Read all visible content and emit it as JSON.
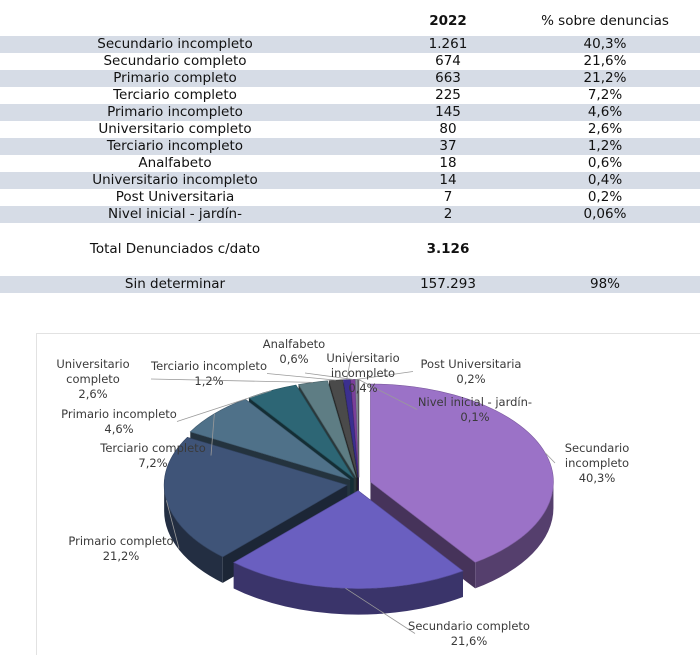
{
  "table": {
    "header": {
      "year": "2022",
      "pct": "% sobre denuncias"
    },
    "rows": [
      {
        "label": "Secundario incompleto",
        "value": "1.261",
        "pct": "40,3%"
      },
      {
        "label": "Secundario completo",
        "value": "674",
        "pct": "21,6%"
      },
      {
        "label": "Primario completo",
        "value": "663",
        "pct": "21,2%"
      },
      {
        "label": "Terciario completo",
        "value": "225",
        "pct": "7,2%"
      },
      {
        "label": "Primario incompleto",
        "value": "145",
        "pct": "4,6%"
      },
      {
        "label": "Universitario completo",
        "value": "80",
        "pct": "2,6%"
      },
      {
        "label": "Terciario incompleto",
        "value": "37",
        "pct": "1,2%"
      },
      {
        "label": "Analfabeto",
        "value": "18",
        "pct": "0,6%"
      },
      {
        "label": "Universitario incompleto",
        "value": "14",
        "pct": "0,4%"
      },
      {
        "label": "Post Universitaria",
        "value": "7",
        "pct": "0,2%"
      },
      {
        "label": "Nivel inicial - jardín-",
        "value": "2",
        "pct": "0,06%"
      }
    ],
    "total": {
      "label": "Total Denunciados c/dato",
      "value": "3.126"
    },
    "undetermined": {
      "label": "Sin determinar",
      "value": "157.293",
      "pct": "98%"
    }
  },
  "chart_data": {
    "type": "pie",
    "style": "3d-exploded",
    "categories": [
      "Secundario incompleto",
      "Secundario completo",
      "Primario completo",
      "Terciario completo",
      "Primario incompleto",
      "Universitario completo",
      "Terciario incompleto",
      "Analfabeto",
      "Universitario incompleto",
      "Post Universitaria",
      "Nivel inicial - jardín-"
    ],
    "values": [
      40.3,
      21.6,
      21.2,
      7.2,
      4.6,
      2.6,
      1.2,
      0.6,
      0.4,
      0.2,
      0.1
    ],
    "labels": [
      [
        "Secundario",
        "incompleto",
        "40,3%"
      ],
      [
        "Secundario completo",
        "21,6%"
      ],
      [
        "Primario completo",
        "21,2%"
      ],
      [
        "Terciario completo",
        "7,2%"
      ],
      [
        "Primario incompleto",
        "4,6%"
      ],
      [
        "Universitario",
        "completo",
        "2,6%"
      ],
      [
        "Terciario incompleto",
        "1,2%"
      ],
      [
        "Analfabeto",
        "0,6%"
      ],
      [
        "Universitario",
        "incompleto",
        "0,4%"
      ],
      [
        "Post Universitaria",
        "0,2%"
      ],
      [
        "Nivel inicial - jardín-",
        "0,1%"
      ]
    ],
    "colors": [
      "#9b72c7",
      "#6a5fc0",
      "#3f5478",
      "#4f7189",
      "#2d6675",
      "#5e7d84",
      "#4a4a4a",
      "#3b2f8f",
      "#7a3f9a",
      "#8a8fa0",
      "#6b6b6b"
    ]
  }
}
